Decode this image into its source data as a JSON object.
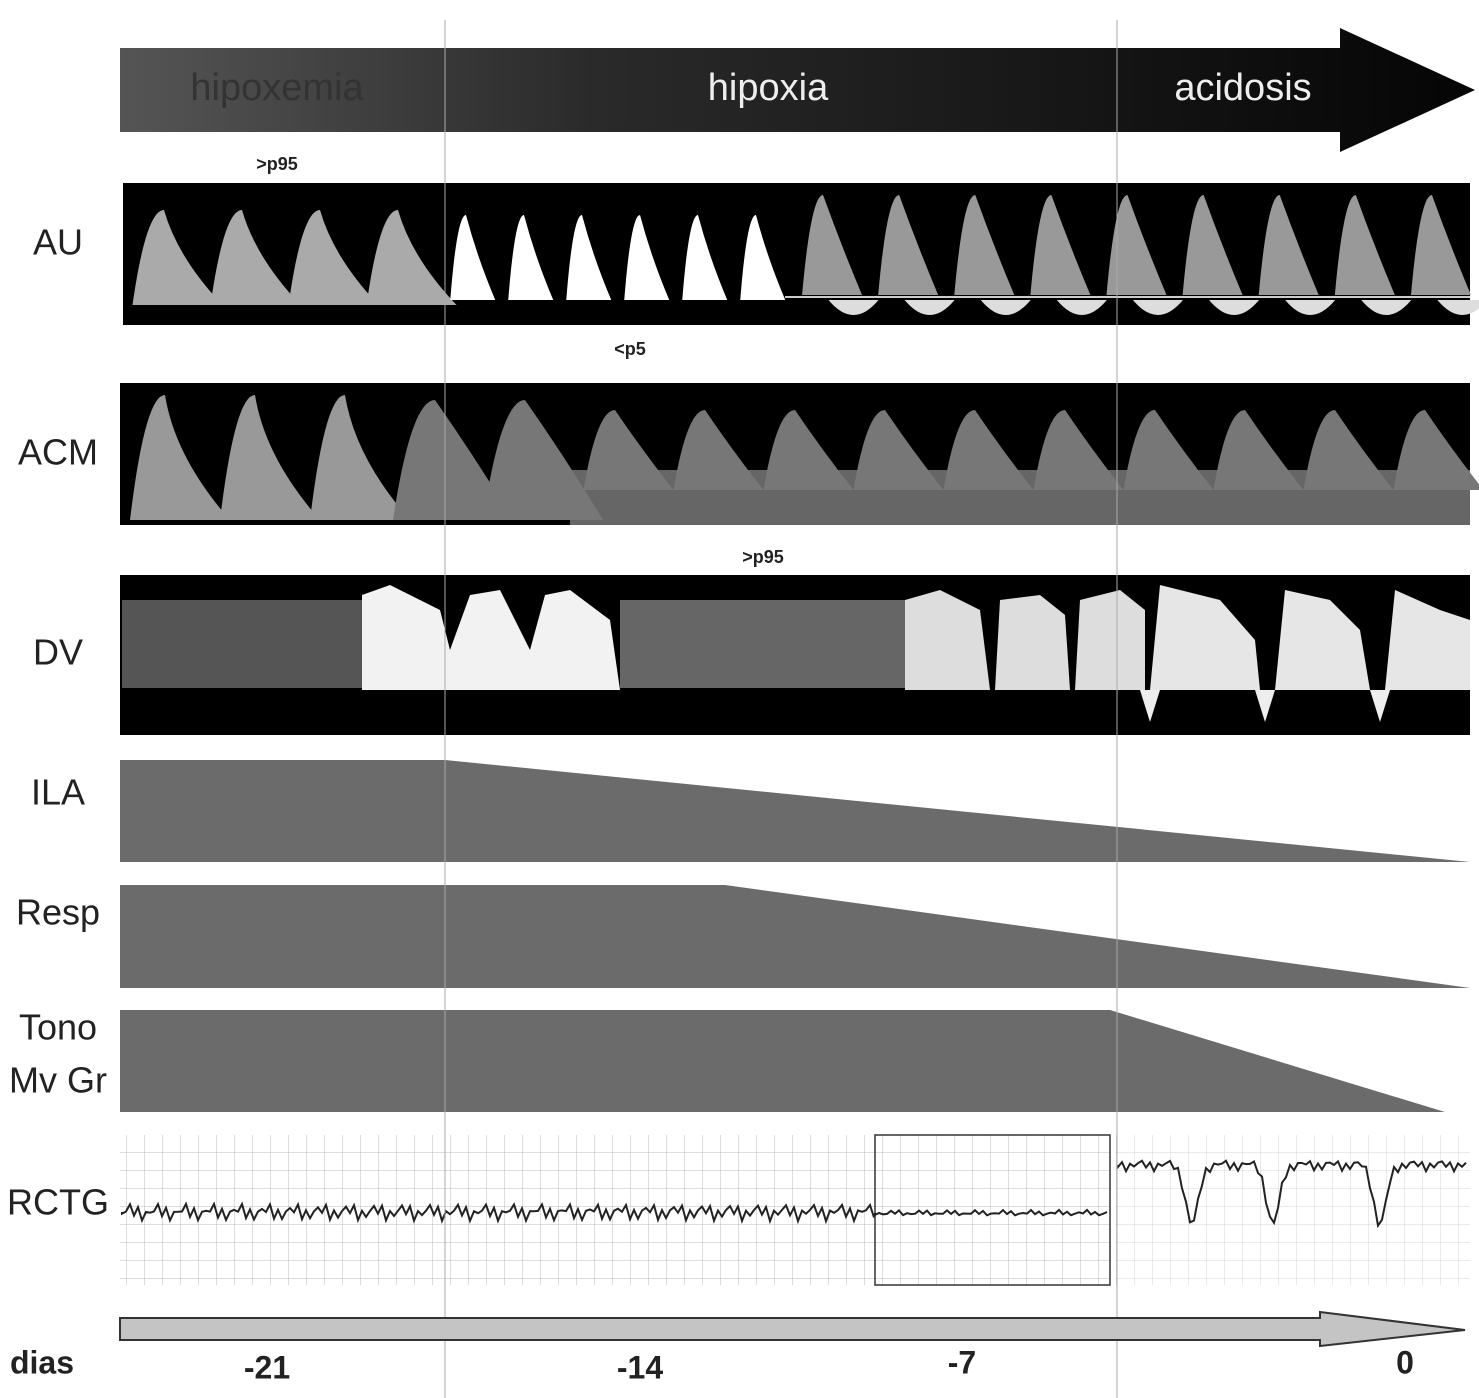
{
  "phase_arrow": {
    "labels": [
      "hipoxemia",
      "hipoxia",
      "acidosis"
    ]
  },
  "annotations": [
    ">p95",
    "<p5",
    ">p95"
  ],
  "row_labels": [
    "AU",
    "ACM",
    "DV",
    "ILA",
    "Resp",
    "Tono",
    "Mv Gr",
    "RCTG"
  ],
  "time_axis": {
    "label": "dias",
    "ticks": [
      "-21",
      "-14",
      "-7",
      "0"
    ]
  }
}
